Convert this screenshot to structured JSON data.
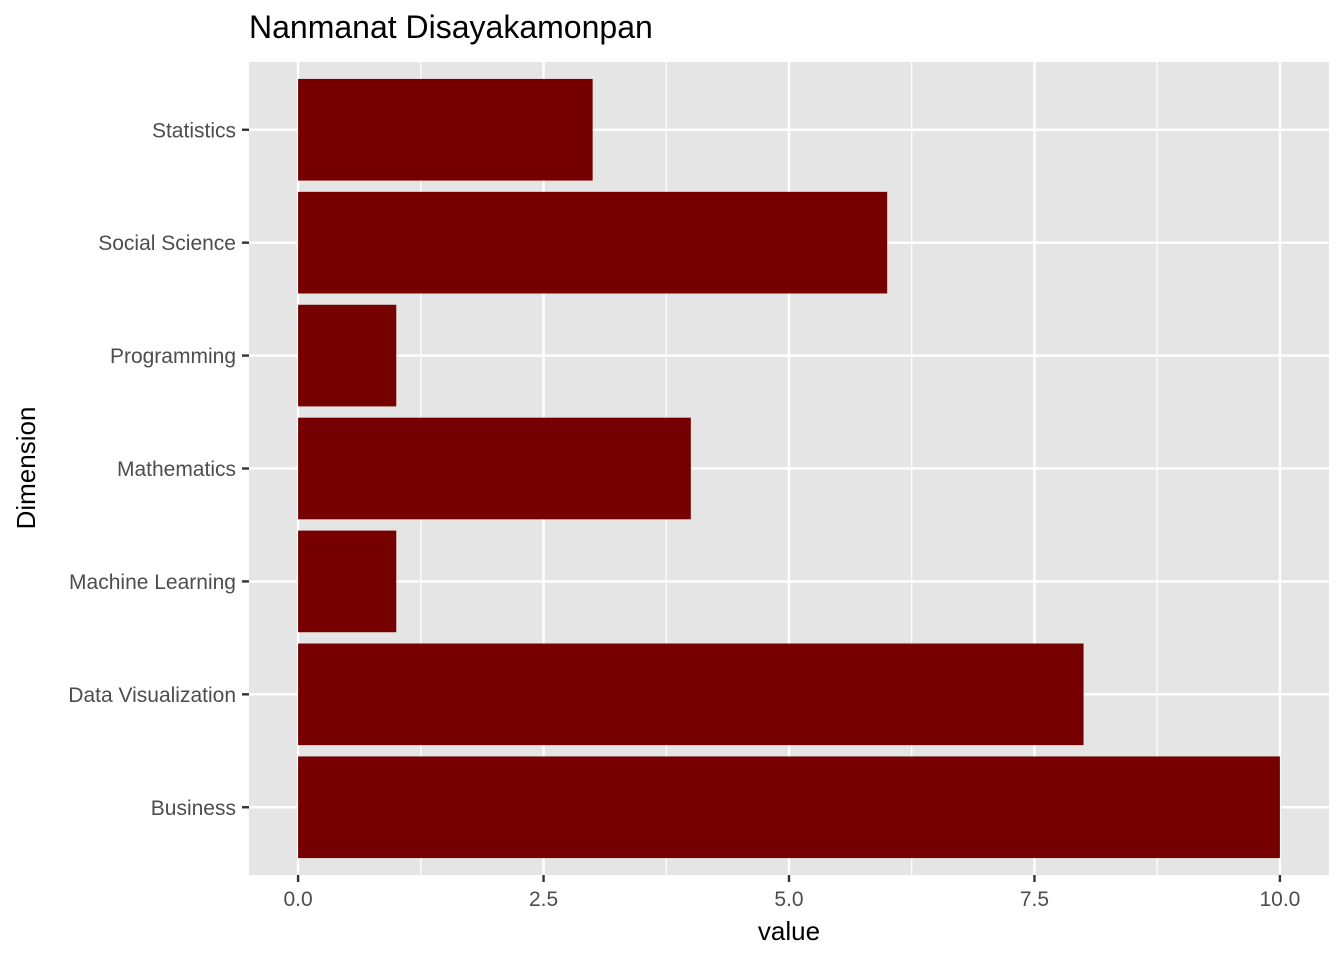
{
  "chart_data": {
    "type": "bar",
    "orientation": "horizontal",
    "title": "Nanmanat Disayakamonpan",
    "xlabel": "value",
    "ylabel": "Dimension",
    "categories": [
      "Business",
      "Data Visualization",
      "Machine Learning",
      "Mathematics",
      "Programming",
      "Social Science",
      "Statistics"
    ],
    "values": [
      10,
      8,
      1,
      4,
      1,
      6,
      3
    ],
    "xlim": [
      -0.5,
      10.5
    ],
    "xticks": [
      0,
      2.5,
      5,
      7.5,
      10
    ],
    "xtick_labels": [
      "0.0",
      "2.5",
      "5.0",
      "7.5",
      "10.0"
    ],
    "grid": true,
    "bar_color": "#760000",
    "panel_color": "#e5e5e5",
    "grid_color": "#ffffff"
  }
}
